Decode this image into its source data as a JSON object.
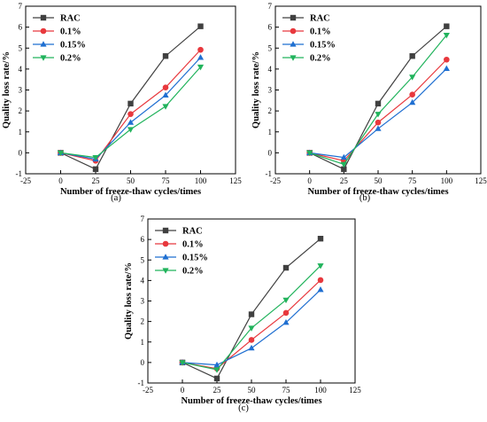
{
  "chart_data": [
    {
      "type": "line",
      "panel_label": "(a)",
      "xlabel": "Number of freeze-thaw cycles/times",
      "ylabel": "Quality loss rate/%",
      "xlim": [
        -25,
        125
      ],
      "ylim": [
        -1,
        7
      ],
      "xticks": [
        -25,
        0,
        25,
        50,
        75,
        100,
        125
      ],
      "yticks": [
        -1,
        0,
        1,
        2,
        3,
        4,
        5,
        6,
        7
      ],
      "x": [
        0,
        25,
        50,
        75,
        100
      ],
      "legend": "top-left",
      "grid": false,
      "series": [
        {
          "name": "RAC",
          "color": "#404040",
          "marker": "square",
          "values": [
            0,
            -0.78,
            2.35,
            4.62,
            6.04
          ]
        },
        {
          "name": "0.1%",
          "color": "#e8383d",
          "marker": "circle",
          "values": [
            0,
            -0.38,
            1.85,
            3.12,
            4.92
          ]
        },
        {
          "name": "0.15%",
          "color": "#1f6fd1",
          "marker": "triangle-up",
          "values": [
            0,
            -0.3,
            1.45,
            2.75,
            4.55
          ]
        },
        {
          "name": "0.2%",
          "color": "#21b35c",
          "marker": "triangle-down",
          "values": [
            0,
            -0.22,
            1.12,
            2.22,
            4.1
          ]
        }
      ]
    },
    {
      "type": "line",
      "panel_label": "(b)",
      "xlabel": "Number of freeze-thaw cycles/times",
      "ylabel": "Quality loss rate/%",
      "xlim": [
        -25,
        125
      ],
      "ylim": [
        -1,
        7
      ],
      "xticks": [
        -25,
        0,
        25,
        50,
        75,
        100,
        125
      ],
      "yticks": [
        -1,
        0,
        1,
        2,
        3,
        4,
        5,
        6,
        7
      ],
      "x": [
        0,
        25,
        50,
        75,
        100
      ],
      "legend": "top-left",
      "grid": false,
      "series": [
        {
          "name": "RAC",
          "color": "#404040",
          "marker": "square",
          "values": [
            0,
            -0.78,
            2.35,
            4.62,
            6.04
          ]
        },
        {
          "name": "0.1%",
          "color": "#e8383d",
          "marker": "circle",
          "values": [
            0,
            -0.38,
            1.45,
            2.78,
            4.45
          ]
        },
        {
          "name": "0.15%",
          "color": "#1f6fd1",
          "marker": "triangle-up",
          "values": [
            0,
            -0.22,
            1.15,
            2.4,
            4.02
          ]
        },
        {
          "name": "0.2%",
          "color": "#21b35c",
          "marker": "triangle-down",
          "values": [
            0,
            -0.55,
            1.85,
            3.62,
            5.62
          ]
        }
      ]
    },
    {
      "type": "line",
      "panel_label": "(c)",
      "xlabel": "Number of freeze-thaw cycles/times",
      "ylabel": "Quality loss rate/%",
      "xlim": [
        -25,
        125
      ],
      "ylim": [
        -1,
        7
      ],
      "xticks": [
        -25,
        0,
        25,
        50,
        75,
        100,
        125
      ],
      "yticks": [
        -1,
        0,
        1,
        2,
        3,
        4,
        5,
        6,
        7
      ],
      "x": [
        0,
        25,
        50,
        75,
        100
      ],
      "legend": "top-left",
      "grid": false,
      "series": [
        {
          "name": "RAC",
          "color": "#404040",
          "marker": "square",
          "values": [
            0,
            -0.78,
            2.35,
            4.62,
            6.04
          ]
        },
        {
          "name": "0.1%",
          "color": "#e8383d",
          "marker": "circle",
          "values": [
            0,
            -0.3,
            1.1,
            2.42,
            4.02
          ]
        },
        {
          "name": "0.15%",
          "color": "#1f6fd1",
          "marker": "triangle-up",
          "values": [
            0,
            -0.12,
            0.7,
            1.95,
            3.55
          ]
        },
        {
          "name": "0.2%",
          "color": "#21b35c",
          "marker": "triangle-down",
          "values": [
            0,
            -0.35,
            1.68,
            3.05,
            4.72
          ]
        }
      ]
    }
  ]
}
